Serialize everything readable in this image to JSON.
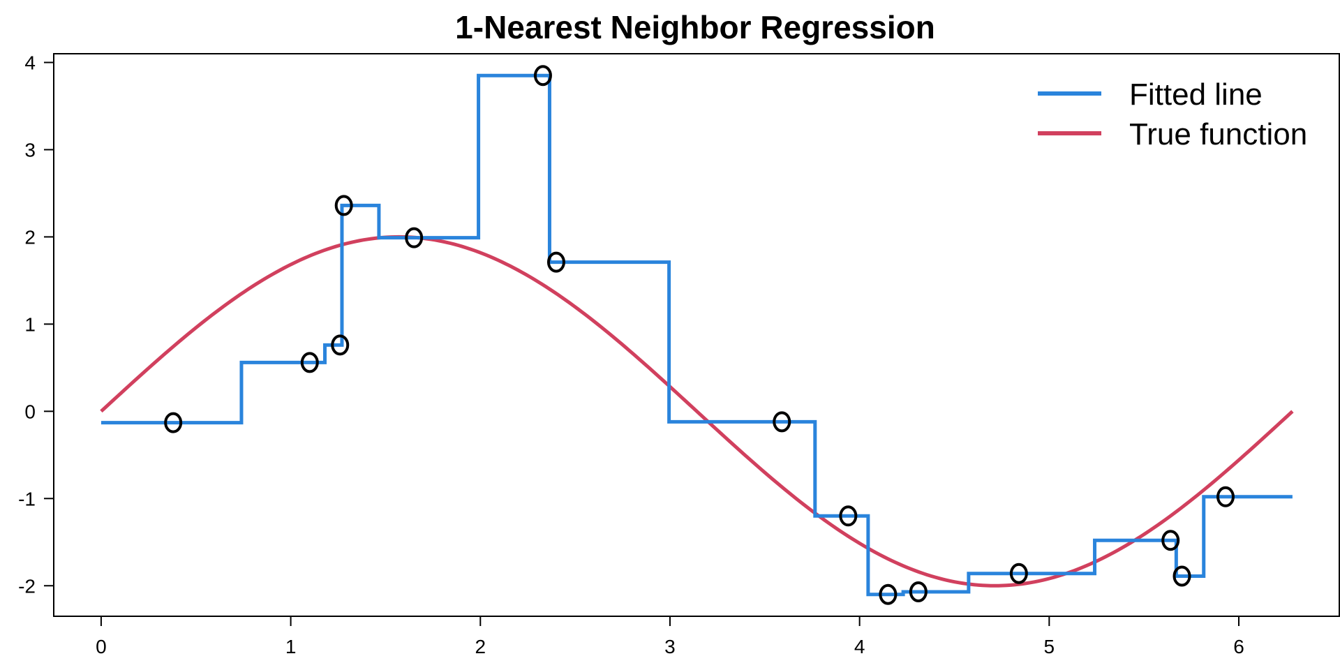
{
  "chart_data": {
    "type": "line",
    "title": "1-Nearest Neighbor Regression",
    "xlabel": "",
    "ylabel": "",
    "xlim": [
      -0.25,
      6.53
    ],
    "ylim": [
      -2.35,
      4.1
    ],
    "x_ticks": [
      0,
      1,
      2,
      3,
      4,
      5,
      6
    ],
    "x_tick_labels": [
      "0",
      "1",
      "2",
      "3",
      "4",
      "5",
      "6"
    ],
    "y_ticks": [
      -2,
      -1,
      0,
      1,
      2,
      3,
      4
    ],
    "y_tick_labels": [
      "-2",
      "-1",
      "0",
      "1",
      "2",
      "3",
      "4"
    ],
    "grid": false,
    "legend": {
      "position": "top-right",
      "entries": [
        {
          "label": "Fitted line",
          "color": "#2a84dc"
        },
        {
          "label": "True function",
          "color": "#d1405e"
        }
      ]
    },
    "points_marker": "O",
    "points_color": "#000000",
    "points": [
      {
        "x": 0.38,
        "y": -0.13
      },
      {
        "x": 1.1,
        "y": 0.56
      },
      {
        "x": 1.26,
        "y": 0.76
      },
      {
        "x": 1.28,
        "y": 2.36
      },
      {
        "x": 1.65,
        "y": 1.99
      },
      {
        "x": 2.33,
        "y": 3.85
      },
      {
        "x": 2.4,
        "y": 1.71
      },
      {
        "x": 3.59,
        "y": -0.12
      },
      {
        "x": 3.94,
        "y": -1.2
      },
      {
        "x": 4.15,
        "y": -2.1
      },
      {
        "x": 4.31,
        "y": -2.07
      },
      {
        "x": 4.84,
        "y": -1.86
      },
      {
        "x": 5.64,
        "y": -1.48
      },
      {
        "x": 5.7,
        "y": -1.89
      },
      {
        "x": 5.93,
        "y": -0.98
      }
    ],
    "series": [
      {
        "name": "Fitted line",
        "color": "#2a84dc",
        "kind": "step",
        "x_start": 0,
        "x_end": 6.283,
        "points": [
          {
            "x": 0.38,
            "y": -0.13
          },
          {
            "x": 1.1,
            "y": 0.56
          },
          {
            "x": 1.26,
            "y": 0.76
          },
          {
            "x": 1.28,
            "y": 2.36
          },
          {
            "x": 1.65,
            "y": 1.99
          },
          {
            "x": 2.33,
            "y": 3.85
          },
          {
            "x": 2.4,
            "y": 1.71
          },
          {
            "x": 3.59,
            "y": -0.12
          },
          {
            "x": 3.94,
            "y": -1.2
          },
          {
            "x": 4.15,
            "y": -2.1
          },
          {
            "x": 4.31,
            "y": -2.07
          },
          {
            "x": 4.84,
            "y": -1.86
          },
          {
            "x": 5.64,
            "y": -1.48
          },
          {
            "x": 5.7,
            "y": -1.89
          },
          {
            "x": 5.93,
            "y": -0.98
          }
        ]
      },
      {
        "name": "True function",
        "color": "#d1405e",
        "kind": "curve",
        "function": "2*sin(x)",
        "x_start": 0,
        "x_end": 6.283
      }
    ]
  }
}
